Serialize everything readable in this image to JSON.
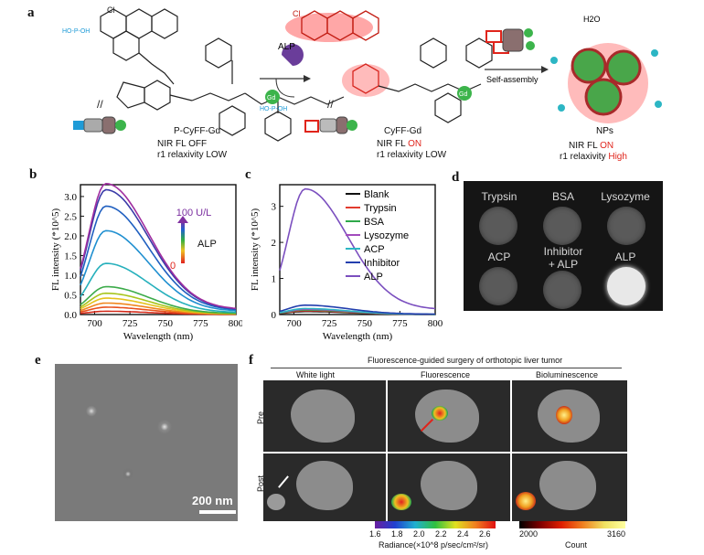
{
  "panel_labels": {
    "a": "a",
    "b": "b",
    "c": "c",
    "d": "d",
    "e": "e",
    "f": "f"
  },
  "panel_a": {
    "alp_label": "ALP",
    "probe_name": "P-CyFF-Gd",
    "probe_fl": "NIR FL OFF",
    "probe_relax": "r1 relaxivity LOW",
    "product_name": "CyFF-Gd",
    "product_fl_prefix": "NIR FL ",
    "product_fl_state": "ON",
    "product_relax": "r1 relaxivity LOW",
    "self_assembly": "Self-assembly",
    "h2o": "H2O",
    "nps": "NPs",
    "nps_fl_prefix": "NIR FL ",
    "nps_fl_state": "ON",
    "nps_relax_prefix": "r1 relaxivity ",
    "nps_relax_state": "High",
    "cl": "Cl",
    "gd": "Gd",
    "phosphate": "HO-P-OH",
    "colors": {
      "on": "#e0241b",
      "glow": "#ff3b3b",
      "gd": "#3cb44b",
      "phosphate": "#1f9bd7",
      "alp": "#6a3d9a"
    }
  },
  "chart_b": {
    "legend_top": "100 U/L",
    "legend_mid": "ALP",
    "legend_bottom": "0"
  },
  "chart_c_legend": [
    "Blank",
    "Trypsin",
    "BSA",
    "Lysozyme",
    "ACP",
    "Inhibitor",
    "ALP"
  ],
  "chart_data": [
    {
      "type": "line",
      "xlabel": "Wavelength (nm)",
      "ylabel": "FL intensity (*10^5)",
      "xlim": [
        690,
        800
      ],
      "ylim": [
        0,
        3.3
      ],
      "xticks": [
        700,
        725,
        750,
        775,
        800
      ],
      "yticks": [
        0.0,
        0.5,
        1.0,
        1.5,
        2.0,
        2.5,
        3.0
      ],
      "ytick_labels": [
        "0.0",
        "0.5",
        "1.0",
        "1.5",
        "2.0",
        "2.5",
        "3.0"
      ],
      "peak_x": 708,
      "series": [
        {
          "peak": 0.08,
          "color": "#d42a1a"
        },
        {
          "peak": 0.18,
          "color": "#e8501c"
        },
        {
          "peak": 0.28,
          "color": "#f0861e"
        },
        {
          "peak": 0.4,
          "color": "#e5c21c"
        },
        {
          "peak": 0.52,
          "color": "#a8c51c"
        },
        {
          "peak": 0.68,
          "color": "#3cab4a"
        },
        {
          "peak": 1.25,
          "color": "#26b0bc"
        },
        {
          "peak": 2.05,
          "color": "#1f8fd0"
        },
        {
          "peak": 2.65,
          "color": "#1f5fc0"
        },
        {
          "peak": 3.05,
          "color": "#3a3aa8"
        },
        {
          "peak": 3.2,
          "color": "#a02ea0"
        }
      ]
    },
    {
      "type": "line",
      "xlabel": "Wavelength (nm)",
      "ylabel": "FL intensity (*10^5)",
      "xlim": [
        690,
        800
      ],
      "ylim": [
        0,
        3.6
      ],
      "xticks": [
        700,
        725,
        750,
        775,
        800
      ],
      "yticks": [
        0,
        1,
        2,
        3
      ],
      "ytick_labels": [
        "0",
        "1",
        "2",
        "3"
      ],
      "peak_x": 708,
      "series": [
        {
          "name": "Blank",
          "peak": 0.08,
          "color": "#111111"
        },
        {
          "name": "Trypsin",
          "peak": 0.1,
          "color": "#e23b2e"
        },
        {
          "name": "BSA",
          "peak": 0.12,
          "color": "#2fa84a"
        },
        {
          "name": "Lysozyme",
          "peak": 0.14,
          "color": "#a24bbd"
        },
        {
          "name": "ACP",
          "peak": 0.16,
          "color": "#2cb6c4"
        },
        {
          "name": "Inhibitor",
          "peak": 0.25,
          "color": "#233fae"
        },
        {
          "name": "ALP",
          "peak": 3.35,
          "color": "#7b4fbf"
        }
      ]
    }
  ],
  "panel_d": {
    "labels": [
      "Trypsin",
      "BSA",
      "Lysozyme",
      "ACP",
      "Inhibitor",
      "+ ALP",
      "ALP"
    ]
  },
  "panel_e": {
    "scale": "200 nm"
  },
  "panel_f": {
    "title": "Fluorescence-guided surgery of orthotopic liver tumor",
    "columns": [
      "White light",
      "Fluorescence",
      "Bioluminescence"
    ],
    "rows": [
      "Pre",
      "Post"
    ],
    "fl_ticks": [
      "1.6",
      "1.8",
      "2.0",
      "2.2",
      "2.4",
      "2.6"
    ],
    "fl_caption": "Radiance(×10^8 p/sec/cm²/sr)",
    "bl_ticks": [
      "2000",
      "3160"
    ],
    "bl_caption": "Count"
  }
}
